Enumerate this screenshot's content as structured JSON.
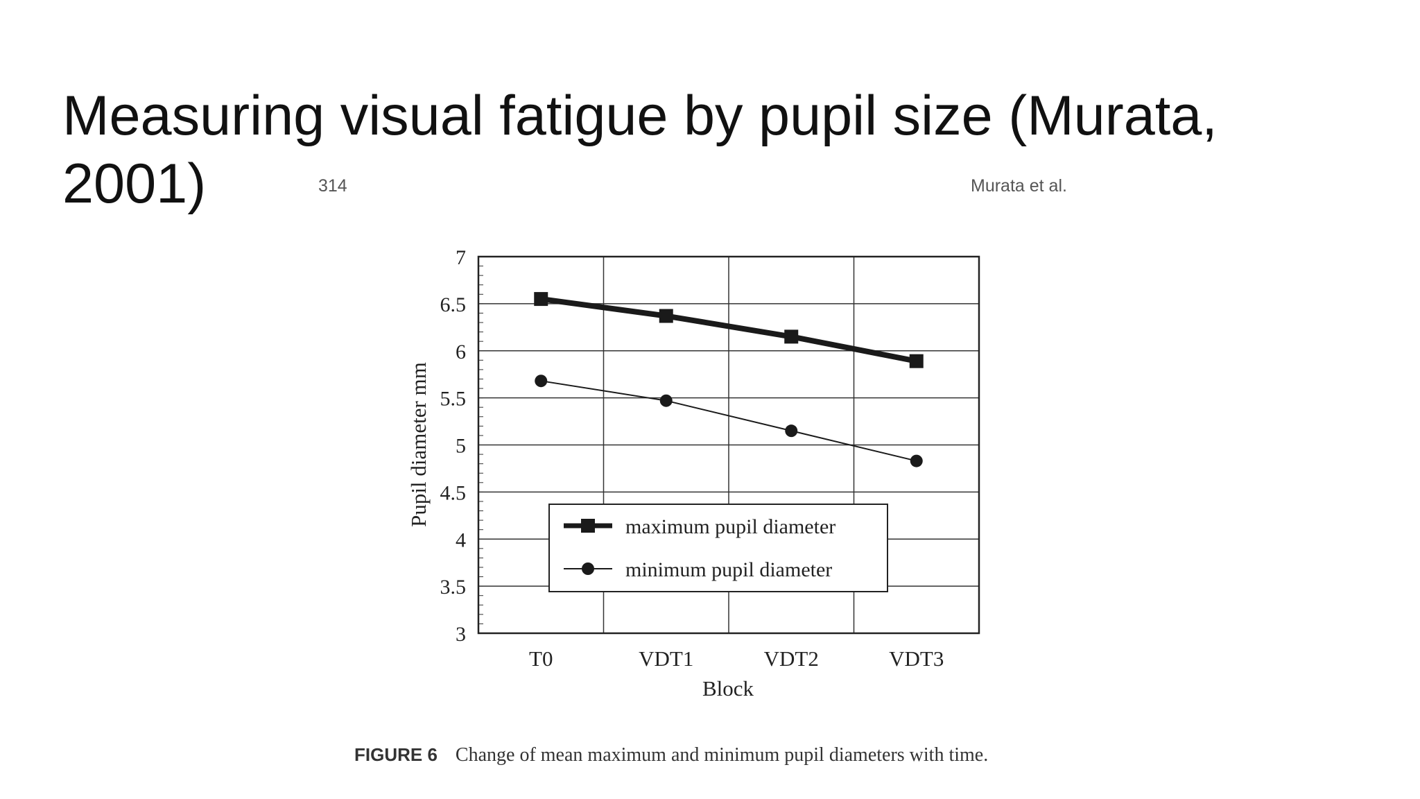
{
  "slide": {
    "title": "Measuring visual fatigue by pupil size (Murata, 2001)"
  },
  "figure": {
    "page_number": "314",
    "running_head": "Murata et al.",
    "caption_label": "FIGURE 6",
    "caption_text": "Change of mean maximum and minimum pupil diameters with time."
  },
  "chart_data": {
    "type": "line",
    "title": "",
    "xlabel": "Block",
    "ylabel": "Pupil diameter  mm",
    "categories": [
      "T0",
      "VDT1",
      "VDT2",
      "VDT3"
    ],
    "ylim": [
      3,
      7
    ],
    "yticks": [
      "3",
      "3.5",
      "4",
      "4.5",
      "5",
      "5.5",
      "6",
      "6.5",
      "7"
    ],
    "grid": true,
    "legend_position": "lower-center",
    "series": [
      {
        "name": "maximum pupil diameter",
        "marker": "square",
        "line": "thick",
        "values": [
          6.55,
          6.37,
          6.15,
          5.89
        ]
      },
      {
        "name": "minimum pupil diameter",
        "marker": "circle",
        "line": "thin",
        "values": [
          5.68,
          5.47,
          5.15,
          4.83
        ]
      }
    ]
  }
}
